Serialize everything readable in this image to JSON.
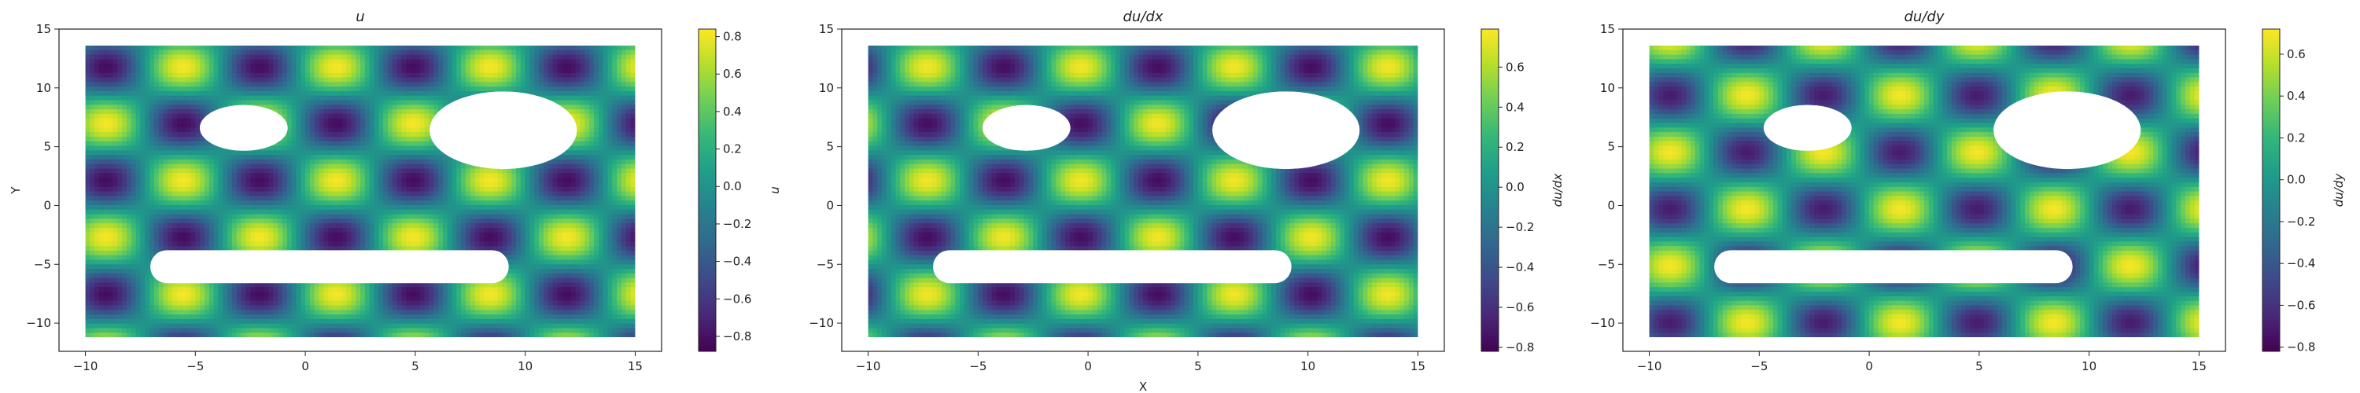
{
  "chart_data": [
    {
      "type": "heatmap",
      "title": "u",
      "xlabel": "",
      "ylabel": "Y",
      "xlim": [
        -11.2,
        16.2
      ],
      "ylim": [
        -12.4,
        15.0
      ],
      "domain": {
        "x": [
          -10,
          15
        ],
        "y": [
          -11.2,
          13.6
        ]
      },
      "xticks": [
        -10,
        -5,
        0,
        5,
        10,
        15
      ],
      "yticks": [
        -10,
        -5,
        0,
        5,
        10,
        15
      ],
      "holes": [
        {
          "shape": "ellipse",
          "cx": -2.8,
          "cy": 6.6,
          "rx": 2.0,
          "ry": 1.95
        },
        {
          "shape": "ellipse",
          "cx": 9.0,
          "cy": 6.4,
          "rx": 3.35,
          "ry": 3.3
        },
        {
          "shape": "stadium",
          "x0": -6.3,
          "x1": 8.5,
          "cy": -5.2,
          "r": 1.4
        }
      ],
      "field": {
        "amplitude": 0.82,
        "kx": 0.9,
        "ky": 0.65,
        "phase_x": 0.3,
        "phase_y": 0.2
      },
      "colorbar": {
        "label": "u",
        "min": -0.88,
        "max": 0.84,
        "ticks": [
          -0.8,
          -0.6,
          -0.4,
          -0.2,
          0.0,
          0.2,
          0.4,
          0.6,
          0.8
        ]
      }
    },
    {
      "type": "heatmap",
      "title": "du/dx",
      "xlabel": "X",
      "ylabel": "",
      "xlim": [
        -11.2,
        16.2
      ],
      "ylim": [
        -12.4,
        15.0
      ],
      "domain": {
        "x": [
          -10,
          15
        ],
        "y": [
          -11.2,
          13.6
        ]
      },
      "xticks": [
        -10,
        -5,
        0,
        5,
        10,
        15
      ],
      "yticks": [
        -10,
        -5,
        0,
        5,
        10,
        15
      ],
      "holes": [
        {
          "shape": "ellipse",
          "cx": -2.8,
          "cy": 6.6,
          "rx": 2.0,
          "ry": 1.95
        },
        {
          "shape": "ellipse",
          "cx": 9.0,
          "cy": 6.4,
          "rx": 3.35,
          "ry": 3.3
        },
        {
          "shape": "stadium",
          "x0": -6.3,
          "x1": 8.5,
          "cy": -5.2,
          "r": 1.4
        }
      ],
      "field": {
        "amplitude": 0.76,
        "kx": 0.9,
        "ky": 0.65,
        "phase_x": 1.87,
        "phase_y": 0.2
      },
      "colorbar": {
        "label": "du/dx",
        "min": -0.82,
        "max": 0.79,
        "ticks": [
          -0.8,
          -0.6,
          -0.4,
          -0.2,
          0.0,
          0.2,
          0.4,
          0.6
        ]
      }
    },
    {
      "type": "heatmap",
      "title": "du/dy",
      "xlabel": "",
      "ylabel": "",
      "xlim": [
        -11.2,
        16.2
      ],
      "ylim": [
        -12.4,
        15.0
      ],
      "domain": {
        "x": [
          -10,
          15
        ],
        "y": [
          -11.2,
          13.6
        ]
      },
      "xticks": [
        -10,
        -5,
        0,
        5,
        10,
        15
      ],
      "yticks": [
        -10,
        -5,
        0,
        5,
        10,
        15
      ],
      "holes": [
        {
          "shape": "ellipse",
          "cx": -2.8,
          "cy": 6.6,
          "rx": 2.0,
          "ry": 1.95
        },
        {
          "shape": "ellipse",
          "cx": 9.0,
          "cy": 6.4,
          "rx": 3.35,
          "ry": 3.3
        },
        {
          "shape": "stadium",
          "x0": -6.3,
          "x1": 8.5,
          "cy": -5.2,
          "r": 1.4
        }
      ],
      "field": {
        "amplitude": 0.7,
        "kx": 0.9,
        "ky": 0.65,
        "phase_x": 0.3,
        "phase_y": 1.77
      },
      "colorbar": {
        "label": "du/dy",
        "min": -0.82,
        "max": 0.72,
        "ticks": [
          -0.8,
          -0.6,
          -0.4,
          -0.2,
          0.0,
          0.2,
          0.4,
          0.6
        ]
      }
    }
  ],
  "colormap": {
    "name": "viridis",
    "stops": [
      "#440154",
      "#482878",
      "#3e4989",
      "#31688e",
      "#26828e",
      "#1f9e89",
      "#35b779",
      "#6ece58",
      "#b5de2b",
      "#fde725"
    ]
  }
}
